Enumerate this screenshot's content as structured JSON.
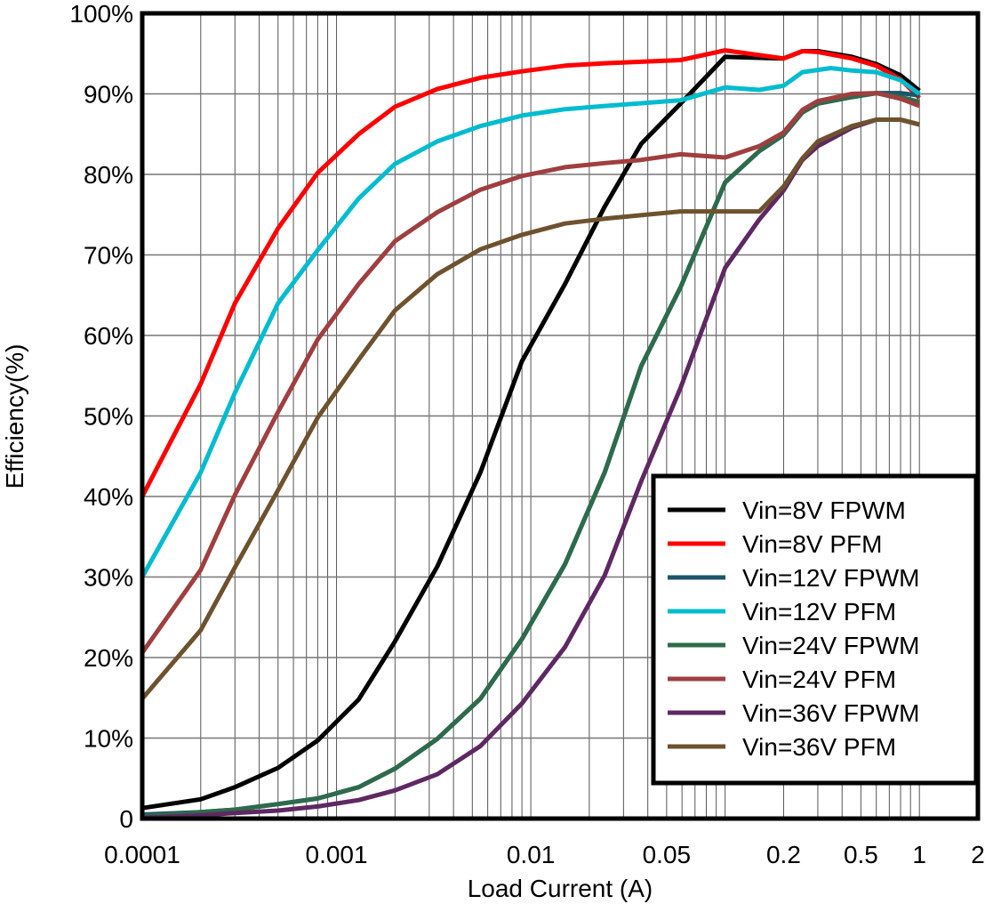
{
  "chart_data": {
    "type": "line",
    "title": "",
    "xlabel": "Load Current (A)",
    "ylabel": "Efficiency(%)",
    "x_scale": "log",
    "xlim": [
      0.0001,
      2
    ],
    "ylim": [
      0,
      100
    ],
    "grid": true,
    "legend_position": "bottom-right",
    "x_ticks": [
      {
        "value": 0.0001,
        "label": "0.0001"
      },
      {
        "value": 0.001,
        "label": "0.001"
      },
      {
        "value": 0.01,
        "label": "0.01"
      },
      {
        "value": 0.05,
        "label": "0.05"
      },
      {
        "value": 0.2,
        "label": "0.2"
      },
      {
        "value": 0.5,
        "label": "0.5"
      },
      {
        "value": 1,
        "label": "1"
      },
      {
        "value": 2,
        "label": "2"
      }
    ],
    "y_ticks": [
      {
        "value": 0,
        "label": "0"
      },
      {
        "value": 10,
        "label": "10%"
      },
      {
        "value": 20,
        "label": "20%"
      },
      {
        "value": 30,
        "label": "30%"
      },
      {
        "value": 40,
        "label": "40%"
      },
      {
        "value": 50,
        "label": "50%"
      },
      {
        "value": 60,
        "label": "60%"
      },
      {
        "value": 70,
        "label": "70%"
      },
      {
        "value": 80,
        "label": "80%"
      },
      {
        "value": 90,
        "label": "90%"
      },
      {
        "value": 100,
        "label": "100%"
      }
    ],
    "series": [
      {
        "name": "Vin=8V FPWM",
        "color": "#000000",
        "x": [
          0.0001,
          0.0002,
          0.0003,
          0.0005,
          0.0008,
          0.0013,
          0.002,
          0.0033,
          0.0055,
          0.009,
          0.015,
          0.024,
          0.037,
          0.059,
          0.1,
          0.2,
          0.25,
          0.3,
          0.45,
          0.6,
          0.8,
          1
        ],
        "y": [
          1.3,
          2.4,
          3.9,
          6.3,
          9.7,
          14.8,
          22,
          31.3,
          43,
          56.8,
          66.4,
          76,
          83.8,
          88.8,
          94.6,
          94.4,
          95.3,
          95.3,
          94.6,
          93.7,
          92.3,
          90.4
        ]
      },
      {
        "name": "Vin=8V PFM",
        "color": "#ff0000",
        "x": [
          0.0001,
          0.0002,
          0.0003,
          0.0005,
          0.0008,
          0.0013,
          0.002,
          0.0033,
          0.0055,
          0.009,
          0.015,
          0.024,
          0.059,
          0.1,
          0.2,
          0.25,
          0.3,
          0.45,
          0.6,
          0.8,
          1
        ],
        "y": [
          40,
          54,
          64,
          73.3,
          80.2,
          85,
          88.4,
          90.6,
          92,
          92.8,
          93.5,
          93.8,
          94.2,
          95.4,
          94.4,
          95.3,
          95.2,
          94.4,
          93.5,
          91.8,
          89.5
        ]
      },
      {
        "name": "Vin=12V FPWM",
        "color": "#1b5568",
        "x": [
          0.0001,
          0.0002,
          0.0003,
          0.0005,
          0.0008,
          0.0013,
          0.002,
          0.0033,
          0.0055,
          0.009,
          0.015,
          0.024,
          0.037,
          0.059,
          0.1,
          0.15,
          0.2,
          0.25,
          0.3,
          0.45,
          0.6,
          0.8,
          1
        ],
        "y": [
          0.5,
          0.8,
          1.1,
          1.8,
          2.5,
          3.9,
          6.2,
          9.9,
          14.9,
          22.3,
          31.6,
          43,
          56.2,
          66,
          79,
          82.9,
          84.9,
          87.7,
          88.8,
          89.6,
          90.1,
          90.1,
          89.8
        ]
      },
      {
        "name": "Vin=12V PFM",
        "color": "#00bccf",
        "x": [
          0.0001,
          0.0002,
          0.0003,
          0.0005,
          0.0008,
          0.0013,
          0.002,
          0.0033,
          0.0055,
          0.009,
          0.015,
          0.024,
          0.059,
          0.1,
          0.15,
          0.2,
          0.25,
          0.35,
          0.45,
          0.6,
          0.8,
          1
        ],
        "y": [
          30,
          43,
          52.9,
          64,
          70.6,
          77,
          81.3,
          84.1,
          86,
          87.3,
          88.1,
          88.5,
          89.2,
          90.8,
          90.5,
          91,
          92.7,
          93.2,
          92.9,
          92.7,
          91.7,
          90
        ]
      },
      {
        "name": "Vin=24V FPWM",
        "color": "#2d6b4c",
        "x": [
          0.0001,
          0.0002,
          0.0003,
          0.0005,
          0.0008,
          0.0013,
          0.002,
          0.0033,
          0.0055,
          0.009,
          0.015,
          0.024,
          0.037,
          0.059,
          0.1,
          0.15,
          0.2,
          0.25,
          0.3,
          0.45,
          0.6,
          0.8,
          1
        ],
        "y": [
          0.3,
          0.8,
          1.1,
          1.8,
          2.5,
          3.9,
          6.2,
          9.9,
          14.9,
          22.3,
          31.6,
          43,
          56.2,
          66,
          79,
          82.9,
          84.9,
          87.7,
          88.8,
          89.6,
          90.1,
          89.6,
          89
        ]
      },
      {
        "name": "Vin=24V PFM",
        "color": "#a03e40",
        "x": [
          0.0001,
          0.0002,
          0.0003,
          0.0005,
          0.0008,
          0.0013,
          0.002,
          0.0033,
          0.0055,
          0.009,
          0.015,
          0.024,
          0.037,
          0.059,
          0.1,
          0.15,
          0.2,
          0.25,
          0.3,
          0.45,
          0.6,
          0.8,
          1
        ],
        "y": [
          20.6,
          30.9,
          40.2,
          50.5,
          59.5,
          66.4,
          71.7,
          75.3,
          78.1,
          79.8,
          80.9,
          81.4,
          81.8,
          82.5,
          82.1,
          83.5,
          85.2,
          88,
          89.1,
          90,
          90.1,
          89.4,
          88.5
        ]
      },
      {
        "name": "Vin=36V FPWM",
        "color": "#5e2862",
        "x": [
          0.0001,
          0.0002,
          0.0003,
          0.0005,
          0.0008,
          0.0013,
          0.002,
          0.0033,
          0.0055,
          0.009,
          0.015,
          0.024,
          0.037,
          0.059,
          0.1,
          0.15,
          0.2,
          0.25,
          0.3,
          0.45,
          0.6,
          0.8,
          1
        ],
        "y": [
          0.1,
          0.4,
          0.7,
          1,
          1.5,
          2.3,
          3.5,
          5.5,
          9,
          14.3,
          21.3,
          30.2,
          41.9,
          53.5,
          68.4,
          74.4,
          78,
          81.8,
          83.5,
          85.8,
          86.8,
          86.8,
          86.2
        ]
      },
      {
        "name": "Vin=36V PFM",
        "color": "#6e522e",
        "x": [
          0.0001,
          0.0002,
          0.0003,
          0.0005,
          0.0008,
          0.0013,
          0.002,
          0.0033,
          0.0055,
          0.009,
          0.015,
          0.024,
          0.059,
          0.1,
          0.15,
          0.2,
          0.25,
          0.3,
          0.45,
          0.6,
          0.8,
          1
        ],
        "y": [
          14.9,
          23.4,
          31.2,
          40.8,
          49.8,
          57,
          63.1,
          67.6,
          70.7,
          72.5,
          73.9,
          74.5,
          75.4,
          75.4,
          75.4,
          78.5,
          82,
          84.1,
          86,
          86.8,
          86.8,
          86.2
        ]
      }
    ]
  }
}
